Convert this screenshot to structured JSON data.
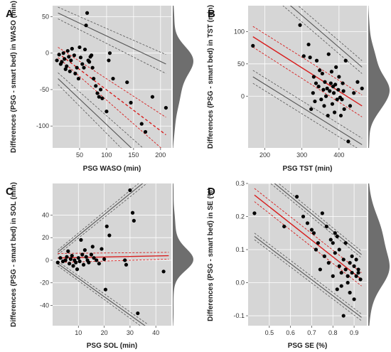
{
  "chart_data": [
    {
      "panel": "A",
      "type": "scatter",
      "xlabel": "PSG WASO (min)",
      "ylabel": "Differences (PSG - smart bed) in WASO (min)",
      "xlim": [
        0,
        220
      ],
      "ylim": [
        -130,
        65
      ],
      "xticks": [
        50,
        100,
        150,
        200
      ],
      "yticks": [
        -100,
        -50,
        0,
        50
      ],
      "grid": true,
      "points": [
        [
          8,
          -10
        ],
        [
          12,
          -2
        ],
        [
          15,
          -15
        ],
        [
          17,
          -12
        ],
        [
          20,
          0
        ],
        [
          22,
          -8
        ],
        [
          24,
          -22
        ],
        [
          26,
          -18
        ],
        [
          28,
          3
        ],
        [
          30,
          -5
        ],
        [
          32,
          -25
        ],
        [
          34,
          -10
        ],
        [
          36,
          6
        ],
        [
          40,
          -3
        ],
        [
          42,
          -28
        ],
        [
          45,
          -20
        ],
        [
          48,
          -35
        ],
        [
          50,
          8
        ],
        [
          52,
          -6
        ],
        [
          55,
          -15
        ],
        [
          58,
          -20
        ],
        [
          60,
          5
        ],
        [
          62,
          38
        ],
        [
          64,
          55
        ],
        [
          66,
          -10
        ],
        [
          68,
          -12
        ],
        [
          70,
          -5
        ],
        [
          72,
          -3
        ],
        [
          74,
          -20
        ],
        [
          76,
          -35
        ],
        [
          80,
          -45
        ],
        [
          83,
          -55
        ],
        [
          86,
          -60
        ],
        [
          89,
          -50
        ],
        [
          92,
          -62
        ],
        [
          100,
          -80
        ],
        [
          104,
          -10
        ],
        [
          106,
          0
        ],
        [
          112,
          -35
        ],
        [
          138,
          -40
        ],
        [
          145,
          -68
        ],
        [
          165,
          -97
        ],
        [
          172,
          -108
        ],
        [
          185,
          -60
        ],
        [
          210,
          -75
        ]
      ],
      "fit_line": {
        "color": "#d81e1e",
        "dashed": true,
        "x": [
          10,
          210
        ],
        "y": [
          0,
          -112
        ]
      },
      "ci_bands": [
        {
          "x": [
            10,
            210
          ],
          "y": [
            8,
            -88
          ]
        },
        {
          "x": [
            10,
            210
          ],
          "y": [
            -6,
            -136
          ]
        }
      ],
      "loa_lines": [
        {
          "x": [
            10,
            210
          ],
          "y": [
            55,
            -15
          ]
        },
        {
          "x": [
            10,
            210
          ],
          "y": [
            -35,
            -175
          ]
        }
      ],
      "loa_bands": [
        {
          "x": [
            10,
            210
          ],
          "y": [
            63,
            -2
          ]
        },
        {
          "x": [
            10,
            210
          ],
          "y": [
            47,
            -28
          ]
        },
        {
          "x": [
            10,
            210
          ],
          "y": [
            -27,
            -158
          ]
        },
        {
          "x": [
            10,
            210
          ],
          "y": [
            -43,
            -192
          ]
        }
      ]
    },
    {
      "panel": "B",
      "type": "scatter",
      "xlabel": "PSG TST (min)",
      "ylabel": "Differences (PSG - smart bed) in TST (min)",
      "xlim": [
        155,
        475
      ],
      "ylim": [
        -80,
        140
      ],
      "xticks": [
        200,
        300,
        400
      ],
      "yticks": [
        0,
        50,
        100
      ],
      "grid": true,
      "points": [
        [
          168,
          78
        ],
        [
          295,
          110
        ],
        [
          305,
          62
        ],
        [
          318,
          80
        ],
        [
          322,
          60
        ],
        [
          325,
          -20
        ],
        [
          330,
          5
        ],
        [
          332,
          30
        ],
        [
          335,
          -8
        ],
        [
          338,
          20
        ],
        [
          340,
          55
        ],
        [
          345,
          15
        ],
        [
          348,
          40
        ],
        [
          352,
          -5
        ],
        [
          355,
          35
        ],
        [
          358,
          10
        ],
        [
          360,
          -15
        ],
        [
          362,
          22
        ],
        [
          365,
          0
        ],
        [
          368,
          12
        ],
        [
          370,
          -30
        ],
        [
          372,
          65
        ],
        [
          375,
          8
        ],
        [
          378,
          20
        ],
        [
          380,
          38
        ],
        [
          382,
          -12
        ],
        [
          384,
          15
        ],
        [
          386,
          5
        ],
        [
          388,
          -25
        ],
        [
          390,
          18
        ],
        [
          392,
          45
        ],
        [
          395,
          -5
        ],
        [
          398,
          10
        ],
        [
          400,
          30
        ],
        [
          403,
          -2
        ],
        [
          405,
          -30
        ],
        [
          408,
          -5
        ],
        [
          410,
          20
        ],
        [
          412,
          8
        ],
        [
          414,
          -20
        ],
        [
          418,
          55
        ],
        [
          425,
          -70
        ],
        [
          430,
          -15
        ],
        [
          440,
          5
        ],
        [
          450,
          22
        ],
        [
          462,
          12
        ]
      ],
      "fit_line": {
        "color": "#d81e1e",
        "dashed": false,
        "x": [
          168,
          462
        ],
        "y": [
          92,
          -15
        ]
      },
      "ci_bands": [
        {
          "x": [
            168,
            462
          ],
          "y": [
            108,
            2
          ]
        },
        {
          "x": [
            168,
            462
          ],
          "y": [
            76,
            -32
          ]
        }
      ],
      "loa_lines": [
        {
          "x": [
            168,
            462
          ],
          "y": [
            190,
            45
          ]
        },
        {
          "x": [
            168,
            462
          ],
          "y": [
            30,
            -75
          ]
        }
      ],
      "loa_bands": [
        {
          "x": [
            168,
            462
          ],
          "y": [
            200,
            55
          ]
        },
        {
          "x": [
            168,
            462
          ],
          "y": [
            180,
            35
          ]
        },
        {
          "x": [
            168,
            462
          ],
          "y": [
            40,
            -65
          ]
        },
        {
          "x": [
            168,
            462
          ],
          "y": [
            20,
            -85
          ]
        }
      ]
    },
    {
      "panel": "C",
      "type": "scatter",
      "xlabel": "PSG SOL (min)",
      "ylabel": "Differences (PSG - smart bed) in SOL (min)",
      "xlim": [
        0,
        46
      ],
      "ylim": [
        -58,
        68
      ],
      "xticks": [
        10,
        20,
        30,
        40
      ],
      "yticks": [
        -40,
        -20,
        0,
        20,
        40
      ],
      "grid": true,
      "points": [
        [
          2,
          -2
        ],
        [
          3,
          2
        ],
        [
          4,
          -1
        ],
        [
          5,
          0
        ],
        [
          5.5,
          3
        ],
        [
          6,
          8
        ],
        [
          6.5,
          -3
        ],
        [
          7,
          1
        ],
        [
          7.5,
          4
        ],
        [
          8,
          -5
        ],
        [
          8.5,
          0
        ],
        [
          9,
          -2
        ],
        [
          9.5,
          -8
        ],
        [
          10,
          2
        ],
        [
          10.5,
          -1
        ],
        [
          11,
          18
        ],
        [
          11.5,
          5
        ],
        [
          12,
          -4
        ],
        [
          12.5,
          9
        ],
        [
          13,
          3
        ],
        [
          13.5,
          0
        ],
        [
          14,
          -2
        ],
        [
          15,
          5
        ],
        [
          15.5,
          12
        ],
        [
          16,
          2
        ],
        [
          17,
          0
        ],
        [
          18,
          -3
        ],
        [
          19,
          10
        ],
        [
          20,
          1
        ],
        [
          20.5,
          -26
        ],
        [
          21,
          30
        ],
        [
          22,
          22
        ],
        [
          28,
          0
        ],
        [
          28.5,
          -4
        ],
        [
          30,
          62
        ],
        [
          31,
          42
        ],
        [
          31.5,
          35
        ],
        [
          33,
          -47
        ],
        [
          43,
          -10
        ]
      ],
      "fit_line": {
        "color": "#d81e1e",
        "dashed": false,
        "x": [
          2,
          45
        ],
        "y": [
          2,
          4
        ]
      },
      "ci_bands": [
        {
          "x": [
            2,
            45
          ],
          "y": [
            6,
            7
          ]
        },
        {
          "x": [
            2,
            45
          ],
          "y": [
            -2,
            1
          ]
        }
      ],
      "loa_lines": [
        {
          "x": [
            2,
            37
          ],
          "y": [
            7,
            72
          ]
        },
        {
          "x": [
            2,
            37
          ],
          "y": [
            -3,
            -60
          ]
        }
      ],
      "loa_bands": [
        {
          "x": [
            2,
            37
          ],
          "y": [
            9,
            75
          ]
        },
        {
          "x": [
            2,
            37
          ],
          "y": [
            5,
            69
          ]
        },
        {
          "x": [
            2,
            37
          ],
          "y": [
            -1,
            -57
          ]
        },
        {
          "x": [
            2,
            37
          ],
          "y": [
            -5,
            -63
          ]
        }
      ]
    },
    {
      "panel": "D",
      "type": "scatter",
      "xlabel": "PSG SE (%)",
      "ylabel": "Differences (PSG - smart bed) in SE (%)",
      "xlim": [
        0.4,
        0.96
      ],
      "ylim": [
        -0.13,
        0.3
      ],
      "xticks": [
        0.5,
        0.6,
        0.7,
        0.8,
        0.9
      ],
      "yticks": [
        -0.1,
        0.0,
        0.1,
        0.2,
        0.3
      ],
      "tick_labels": {
        "x": [
          "0.5",
          "0.6",
          "0.7",
          "0.8",
          "0.9"
        ],
        "y": [
          "-0.1",
          "0.0",
          "0.1",
          "0.2",
          "0.3"
        ]
      },
      "grid": true,
      "points": [
        [
          0.43,
          0.21
        ],
        [
          0.57,
          0.17
        ],
        [
          0.63,
          0.26
        ],
        [
          0.66,
          0.2
        ],
        [
          0.68,
          0.18
        ],
        [
          0.7,
          0.16
        ],
        [
          0.71,
          0.15
        ],
        [
          0.72,
          0.1
        ],
        [
          0.73,
          0.12
        ],
        [
          0.74,
          0.04
        ],
        [
          0.75,
          0.21
        ],
        [
          0.76,
          0.08
        ],
        [
          0.77,
          0.17
        ],
        [
          0.78,
          0.06
        ],
        [
          0.79,
          0.13
        ],
        [
          0.8,
          0.12
        ],
        [
          0.8,
          0.02
        ],
        [
          0.81,
          0.15
        ],
        [
          0.81,
          0.09
        ],
        [
          0.82,
          0.14
        ],
        [
          0.82,
          -0.02
        ],
        [
          0.83,
          0.05
        ],
        [
          0.83,
          0.1
        ],
        [
          0.84,
          0.03
        ],
        [
          0.84,
          -0.01
        ],
        [
          0.85,
          0.07
        ],
        [
          0.85,
          -0.1
        ],
        [
          0.86,
          0.04
        ],
        [
          0.86,
          0.12
        ],
        [
          0.87,
          0.0
        ],
        [
          0.87,
          0.02
        ],
        [
          0.88,
          0.06
        ],
        [
          0.88,
          -0.03
        ],
        [
          0.89,
          0.08
        ],
        [
          0.89,
          0.03
        ],
        [
          0.9,
          0.05
        ],
        [
          0.9,
          -0.05
        ],
        [
          0.91,
          0.02
        ],
        [
          0.91,
          0.07
        ],
        [
          0.92,
          0.03
        ],
        [
          0.92,
          0.04
        ],
        [
          0.93,
          0.01
        ]
      ],
      "fit_line": {
        "color": "#d81e1e",
        "dashed": false,
        "x": [
          0.43,
          0.935
        ],
        "y": [
          0.265,
          0.01
        ]
      },
      "ci_bands": [
        {
          "x": [
            0.43,
            0.935
          ],
          "y": [
            0.285,
            0.03
          ]
        },
        {
          "x": [
            0.43,
            0.935
          ],
          "y": [
            0.245,
            -0.01
          ]
        }
      ],
      "loa_lines": [
        {
          "x": [
            0.43,
            0.935
          ],
          "y": [
            0.35,
            0.085
          ]
        },
        {
          "x": [
            0.43,
            0.935
          ],
          "y": [
            0.14,
            -0.105
          ]
        }
      ],
      "loa_bands": [
        {
          "x": [
            0.43,
            0.935
          ],
          "y": [
            0.36,
            0.095
          ]
        },
        {
          "x": [
            0.43,
            0.935
          ],
          "y": [
            0.34,
            0.075
          ]
        },
        {
          "x": [
            0.43,
            0.935
          ],
          "y": [
            0.15,
            -0.095
          ]
        },
        {
          "x": [
            0.43,
            0.935
          ],
          "y": [
            0.13,
            -0.115
          ]
        }
      ]
    }
  ],
  "colors": {
    "panel_bg": "#d6d6d6",
    "grid": "#ffffff",
    "points": "#000000",
    "fit": "#d81e1e",
    "loa": "#555555",
    "density": "#6e6e6e"
  }
}
